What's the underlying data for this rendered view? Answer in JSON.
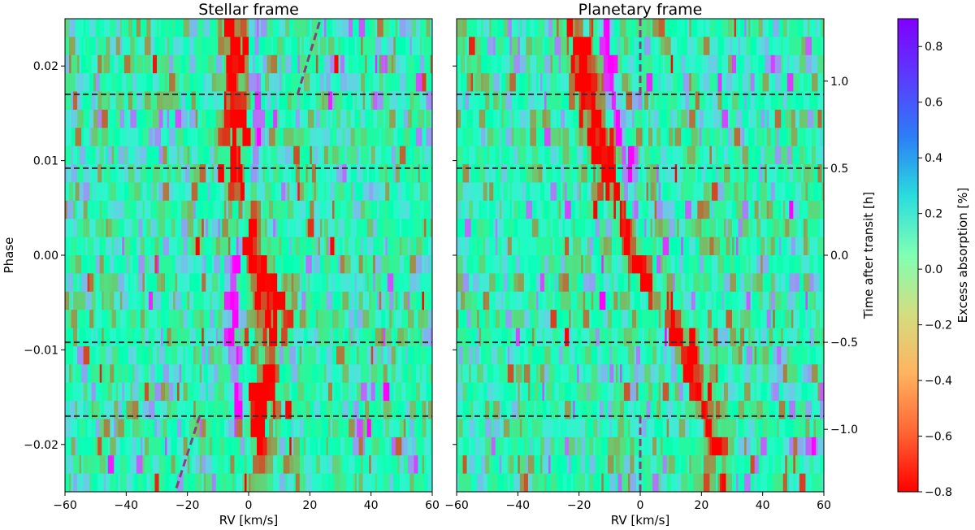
{
  "chart_data": [
    {
      "type": "heatmap",
      "title": "Stellar frame",
      "xlabel": "RV [km/s]",
      "ylabel": "Phase",
      "xlim": [
        -60,
        60
      ],
      "ylim": [
        -0.025,
        0.025
      ],
      "xticks": [
        -60,
        -40,
        -20,
        0,
        20,
        40,
        60
      ],
      "xtick_labels": [
        "−60",
        "−40",
        "−20",
        "0",
        "20",
        "40",
        "60"
      ],
      "yticks": [
        -0.02,
        -0.01,
        0.0,
        0.01,
        0.02
      ],
      "ytick_labels": [
        "−0.02",
        "−0.01",
        "0.00",
        "0.01",
        "0.02"
      ],
      "hlines_phase": [
        0.017,
        0.0092,
        -0.0092,
        -0.017
      ],
      "absorption_trail": {
        "description": "red absorption trace",
        "points_rv_phase": [
          [
            -4,
            0.023
          ],
          [
            -4,
            0.008
          ],
          [
            1,
            0.002
          ],
          [
            7,
            -0.006
          ],
          [
            7,
            -0.011
          ],
          [
            2,
            -0.02
          ]
        ]
      },
      "emission_trail": {
        "points_rv_phase": [
          [
            2,
            0.021
          ],
          [
            3,
            0.013
          ],
          [
            -5,
            -0.003
          ],
          [
            -6,
            -0.009
          ],
          [
            -4,
            -0.015
          ],
          [
            2,
            -0.024
          ]
        ]
      },
      "planet_track_segments": [
        {
          "rv": [
            16,
            23.5
          ],
          "phase": [
            0.017,
            0.025
          ]
        },
        {
          "rv": [
            -16,
            -24
          ],
          "phase": [
            -0.017,
            -0.025
          ]
        }
      ]
    },
    {
      "type": "heatmap",
      "title": "Planetary frame",
      "xlabel": "RV [km/s]",
      "ylabel_right": "Time after transit [h]",
      "xlim": [
        -60,
        60
      ],
      "ylim": [
        -0.025,
        0.025
      ],
      "xticks": [
        -60,
        -40,
        -20,
        0,
        20,
        40,
        60
      ],
      "xtick_labels": [
        "−60",
        "−40",
        "−20",
        "0",
        "20",
        "40",
        "60"
      ],
      "right_yticks_phase": [
        0.0184,
        0.0092,
        0.0,
        -0.0092,
        -0.0184
      ],
      "right_ytick_labels": [
        "1.0",
        "0.5",
        "0.0",
        "−0.5",
        "−1.0"
      ],
      "hlines_phase": [
        0.017,
        0.0092,
        -0.0092,
        -0.017
      ],
      "absorption_trail": {
        "points_rv_phase": [
          [
            -21,
            0.025
          ],
          [
            -18,
            0.019
          ],
          [
            -14,
            0.013
          ],
          [
            -10,
            0.008
          ],
          [
            -6,
            0.004
          ],
          [
            2,
            -0.002
          ],
          [
            10,
            -0.007
          ],
          [
            16,
            -0.011
          ],
          [
            22,
            -0.019
          ],
          [
            26,
            -0.025
          ]
        ]
      },
      "emission_trail": {
        "points_rv_phase": [
          [
            -12,
            0.025
          ],
          [
            -8,
            0.015
          ],
          [
            -4,
            0.01
          ],
          [
            -2,
            0.004
          ],
          [
            4,
            -0.002
          ],
          [
            10,
            -0.01
          ],
          [
            16,
            -0.015
          ],
          [
            22,
            -0.022
          ],
          [
            26,
            -0.025
          ]
        ]
      },
      "planet_track_segments": [
        {
          "rv": [
            0,
            0
          ],
          "phase": [
            0.017,
            0.025
          ]
        },
        {
          "rv": [
            0,
            0
          ],
          "phase": [
            -0.017,
            -0.025
          ]
        }
      ]
    }
  ],
  "colorbar": {
    "label": "Excess absorption [%]",
    "vmin": -0.8,
    "vmax": 0.9,
    "ticks": [
      0.8,
      0.6,
      0.4,
      0.2,
      0.0,
      -0.2,
      -0.4,
      -0.6,
      -0.8
    ],
    "tick_labels": [
      "0.8",
      "0.6",
      "0.4",
      "0.2",
      "0.0",
      "−0.2",
      "−0.4",
      "−0.6",
      "−0.8"
    ],
    "colormap": "rainbow_r"
  },
  "colors": {
    "hline": "#333333",
    "planet_track": "#8a3f7a"
  }
}
